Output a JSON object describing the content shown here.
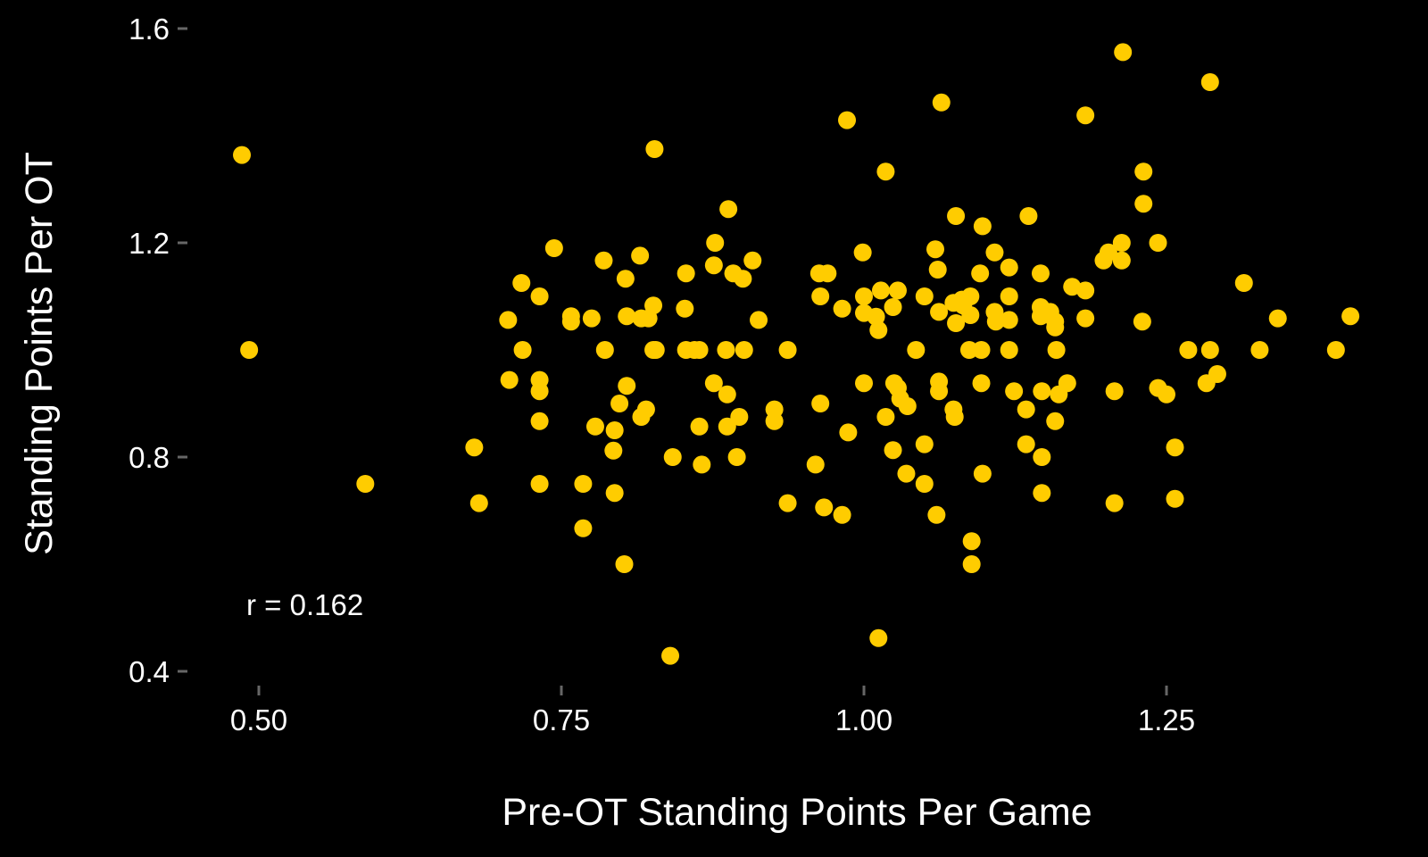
{
  "chart_data": {
    "type": "scatter",
    "title": "",
    "xlabel": "Pre-OT Standing Points Per Game",
    "ylabel": "Standing Points Per OT",
    "xlim": [
      0.44,
      1.42
    ],
    "ylim": [
      0.37,
      1.64
    ],
    "x_ticks": [
      0.5,
      0.75,
      1.0,
      1.25
    ],
    "x_tick_labels": [
      "0.50",
      "0.75",
      "1.00",
      "1.25"
    ],
    "y_ticks": [
      0.4,
      0.8,
      1.2,
      1.6
    ],
    "y_tick_labels": [
      "0.4",
      "0.8",
      "1.2",
      "1.6"
    ],
    "grid": false,
    "annotation": "r =  0.162",
    "point_color": "#FFCC00",
    "background": "#000000",
    "points": [
      [
        0.486,
        1.364
      ],
      [
        0.492,
        1.0
      ],
      [
        0.588,
        0.75
      ],
      [
        0.678,
        0.818
      ],
      [
        0.682,
        0.714
      ],
      [
        0.706,
        1.056
      ],
      [
        0.707,
        0.944
      ],
      [
        0.717,
        1.125
      ],
      [
        0.718,
        1.0
      ],
      [
        0.732,
        1.1
      ],
      [
        0.732,
        0.944
      ],
      [
        0.732,
        0.923
      ],
      [
        0.732,
        0.867
      ],
      [
        0.732,
        0.75
      ],
      [
        0.744,
        1.19
      ],
      [
        0.758,
        1.063
      ],
      [
        0.758,
        1.053
      ],
      [
        0.768,
        0.75
      ],
      [
        0.768,
        0.667
      ],
      [
        0.775,
        1.059
      ],
      [
        0.778,
        0.857
      ],
      [
        0.785,
        1.167
      ],
      [
        0.786,
        1.0
      ],
      [
        0.793,
        0.812
      ],
      [
        0.794,
        0.733
      ],
      [
        0.794,
        0.85
      ],
      [
        0.802,
        0.6
      ],
      [
        0.803,
        1.133
      ],
      [
        0.804,
        0.933
      ],
      [
        0.798,
        0.9
      ],
      [
        0.804,
        1.063
      ],
      [
        0.815,
        1.176
      ],
      [
        0.816,
        0.875
      ],
      [
        0.816,
        1.059
      ],
      [
        0.82,
        0.889
      ],
      [
        0.822,
        1.059
      ],
      [
        0.826,
        1.083
      ],
      [
        0.826,
        1.0
      ],
      [
        0.828,
        1.0
      ],
      [
        0.827,
        1.375
      ],
      [
        0.84,
        0.429
      ],
      [
        0.842,
        0.8
      ],
      [
        0.852,
        1.077
      ],
      [
        0.853,
        1.143
      ],
      [
        0.853,
        1.0
      ],
      [
        0.86,
        1.0
      ],
      [
        0.864,
        1.0
      ],
      [
        0.864,
        0.857
      ],
      [
        0.866,
        0.786
      ],
      [
        0.876,
        0.938
      ],
      [
        0.876,
        1.158
      ],
      [
        0.877,
        1.2
      ],
      [
        0.886,
        1.0
      ],
      [
        0.887,
        0.917
      ],
      [
        0.887,
        0.857
      ],
      [
        0.888,
        1.263
      ],
      [
        0.892,
        1.143
      ],
      [
        0.895,
        0.8
      ],
      [
        0.897,
        0.875
      ],
      [
        0.9,
        1.133
      ],
      [
        0.901,
        1.0
      ],
      [
        0.908,
        1.167
      ],
      [
        0.913,
        1.056
      ],
      [
        0.926,
        0.889
      ],
      [
        0.926,
        0.867
      ],
      [
        0.937,
        1.0
      ],
      [
        0.937,
        0.714
      ],
      [
        0.96,
        0.786
      ],
      [
        0.963,
        1.143
      ],
      [
        0.964,
        1.1
      ],
      [
        0.964,
        0.9
      ],
      [
        0.967,
        0.706
      ],
      [
        0.97,
        1.143
      ],
      [
        0.982,
        0.692
      ],
      [
        0.982,
        1.077
      ],
      [
        0.986,
        1.429
      ],
      [
        0.987,
        0.846
      ],
      [
        0.999,
        1.182
      ],
      [
        1.0,
        1.069
      ],
      [
        1.0,
        1.1
      ],
      [
        1.0,
        0.938
      ],
      [
        1.01,
        1.062
      ],
      [
        1.012,
        1.037
      ],
      [
        1.012,
        0.462
      ],
      [
        1.014,
        1.111
      ],
      [
        1.018,
        1.333
      ],
      [
        1.018,
        0.875
      ],
      [
        1.024,
        1.08
      ],
      [
        1.024,
        0.813
      ],
      [
        1.025,
        0.938
      ],
      [
        1.028,
        1.111
      ],
      [
        1.028,
        0.929
      ],
      [
        1.03,
        0.909
      ],
      [
        1.035,
        0.769
      ],
      [
        1.036,
        0.895
      ],
      [
        1.043,
        1.0
      ],
      [
        1.05,
        1.1
      ],
      [
        1.05,
        0.75
      ],
      [
        1.05,
        0.824
      ],
      [
        1.059,
        1.188
      ],
      [
        1.06,
        0.692
      ],
      [
        1.061,
        1.15
      ],
      [
        1.062,
        1.071
      ],
      [
        1.062,
        0.941
      ],
      [
        1.062,
        0.923
      ],
      [
        1.064,
        1.462
      ],
      [
        1.074,
        1.088
      ],
      [
        1.074,
        0.889
      ],
      [
        1.075,
        0.875
      ],
      [
        1.076,
        1.05
      ],
      [
        1.076,
        1.25
      ],
      [
        1.081,
        1.094
      ],
      [
        1.082,
        1.083
      ],
      [
        1.087,
        1.0
      ],
      [
        1.088,
        1.1
      ],
      [
        1.088,
        1.065
      ],
      [
        1.089,
        0.643
      ],
      [
        1.089,
        0.6
      ],
      [
        1.096,
        1.143
      ],
      [
        1.097,
        1.0
      ],
      [
        1.097,
        0.938
      ],
      [
        1.098,
        0.769
      ],
      [
        1.098,
        1.231
      ],
      [
        1.108,
        1.182
      ],
      [
        1.108,
        1.071
      ],
      [
        1.109,
        1.053
      ],
      [
        1.12,
        1.154
      ],
      [
        1.12,
        1.1
      ],
      [
        1.12,
        1.056
      ],
      [
        1.12,
        1.0
      ],
      [
        1.124,
        0.923
      ],
      [
        1.134,
        0.889
      ],
      [
        1.134,
        0.824
      ],
      [
        1.136,
        1.25
      ],
      [
        1.146,
        1.143
      ],
      [
        1.146,
        1.08
      ],
      [
        1.146,
        1.063
      ],
      [
        1.147,
        0.923
      ],
      [
        1.147,
        0.8
      ],
      [
        1.147,
        0.733
      ],
      [
        1.154,
        1.071
      ],
      [
        1.158,
        1.053
      ],
      [
        1.158,
        1.042
      ],
      [
        1.158,
        0.867
      ],
      [
        1.159,
        1.0
      ],
      [
        1.161,
        0.917
      ],
      [
        1.168,
        0.938
      ],
      [
        1.172,
        1.118
      ],
      [
        1.183,
        1.111
      ],
      [
        1.183,
        1.059
      ],
      [
        1.183,
        1.438
      ],
      [
        1.198,
        1.167
      ],
      [
        1.202,
        1.182
      ],
      [
        1.207,
        0.923
      ],
      [
        1.207,
        0.714
      ],
      [
        1.213,
        1.2
      ],
      [
        1.213,
        1.167
      ],
      [
        1.214,
        1.556
      ],
      [
        1.23,
        1.053
      ],
      [
        1.231,
        1.333
      ],
      [
        1.231,
        1.273
      ],
      [
        1.243,
        1.2
      ],
      [
        1.243,
        0.929
      ],
      [
        1.25,
        0.917
      ],
      [
        1.257,
        0.818
      ],
      [
        1.257,
        0.722
      ],
      [
        1.268,
        1.0
      ],
      [
        1.283,
        0.938
      ],
      [
        1.286,
        1.0
      ],
      [
        1.286,
        1.5
      ],
      [
        1.292,
        0.955
      ],
      [
        1.314,
        1.125
      ],
      [
        1.327,
        1.0
      ],
      [
        1.342,
        1.059
      ],
      [
        1.39,
        1.0
      ],
      [
        1.402,
        1.063
      ]
    ]
  }
}
